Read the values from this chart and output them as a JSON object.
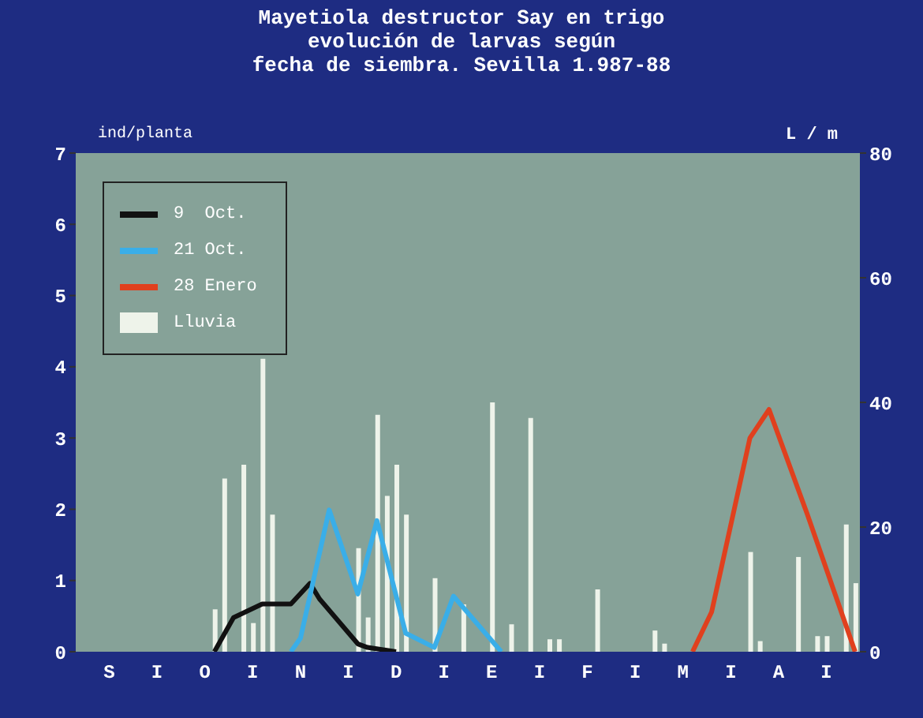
{
  "chart_data": {
    "type": "line",
    "title": "Mayetiola destructor Say en trigo\nevolución de larvas según\nfecha de siembra. Sevilla 1.987-88",
    "ylabel": "ind/planta",
    "y2label": "L / m",
    "categories": [
      null,
      null,
      null,
      "S",
      null,
      null,
      null,
      null,
      "I",
      null,
      null,
      null,
      null,
      "O",
      null,
      null,
      null,
      null,
      "I",
      null,
      null,
      null,
      null,
      "N",
      null,
      null,
      null,
      null,
      "I",
      null,
      null,
      null,
      null,
      "D",
      null,
      null,
      null,
      null,
      "I",
      null,
      null,
      null,
      null,
      "E",
      null,
      null,
      null,
      null,
      "I",
      null,
      null,
      null,
      null,
      "F",
      null,
      null,
      null,
      null,
      "I",
      null,
      null,
      null,
      null,
      "M",
      null,
      null,
      null,
      null,
      "I",
      null,
      null,
      null,
      null,
      "A",
      null,
      null,
      null,
      null,
      "I",
      null,
      null,
      null
    ],
    "ylim": [
      0,
      7
    ],
    "yticks": [
      0,
      1,
      2,
      3,
      4,
      5,
      6,
      7
    ],
    "y2lim": [
      0,
      80
    ],
    "y2ticks": [
      0,
      20,
      40,
      60,
      80
    ],
    "legend": "top left",
    "marker": "none",
    "series": [
      {
        "name": "9  Oct.",
        "color": "#111111",
        "values": [
          null,
          null,
          null,
          null,
          null,
          null,
          null,
          null,
          null,
          null,
          null,
          null,
          null,
          null,
          0,
          null,
          0.48,
          null,
          null,
          0.67,
          null,
          null,
          0.67,
          null,
          0.96,
          0.74,
          null,
          null,
          null,
          0.11,
          0.06,
          null,
          null,
          0,
          null,
          null,
          null,
          null,
          null,
          null,
          null,
          null,
          null,
          null,
          null,
          null,
          null,
          null,
          null,
          null,
          null,
          null,
          null,
          null,
          null,
          null,
          null,
          null,
          null,
          null,
          null,
          null,
          null,
          null,
          null,
          null,
          null,
          null,
          null,
          null,
          null,
          null,
          null,
          null,
          null,
          null,
          null,
          null,
          null,
          null,
          null,
          null
        ]
      },
      {
        "name": "21 Oct.",
        "color": "#3aaee8",
        "values": [
          null,
          null,
          null,
          null,
          null,
          null,
          null,
          null,
          null,
          null,
          null,
          null,
          null,
          null,
          null,
          null,
          null,
          null,
          null,
          null,
          null,
          null,
          0,
          0.19,
          null,
          null,
          1.99,
          null,
          null,
          0.81,
          null,
          1.84,
          null,
          null,
          0.26,
          null,
          null,
          0.06,
          null,
          0.78,
          null,
          null,
          null,
          null,
          0,
          null,
          null,
          null,
          null,
          null,
          null,
          null,
          null,
          null,
          null,
          null,
          null,
          null,
          null,
          null,
          null,
          null,
          null,
          null,
          null,
          null,
          null,
          null,
          null,
          null,
          null,
          null,
          null,
          null,
          null,
          null,
          null,
          null,
          null,
          null,
          null,
          null
        ]
      },
      {
        "name": "28 Enero",
        "color": "#e0401e",
        "values": [
          null,
          null,
          null,
          null,
          null,
          null,
          null,
          null,
          null,
          null,
          null,
          null,
          null,
          null,
          null,
          null,
          null,
          null,
          null,
          null,
          null,
          null,
          null,
          null,
          null,
          null,
          null,
          null,
          null,
          null,
          null,
          null,
          null,
          null,
          null,
          null,
          null,
          null,
          null,
          null,
          null,
          null,
          null,
          null,
          null,
          null,
          null,
          null,
          null,
          null,
          null,
          null,
          null,
          null,
          null,
          null,
          null,
          null,
          null,
          null,
          null,
          null,
          null,
          null,
          0,
          null,
          0.56,
          null,
          null,
          null,
          3.0,
          null,
          3.4,
          null,
          null,
          null,
          1.93,
          null,
          null,
          null,
          null,
          0
        ]
      },
      {
        "name": "Lluvia",
        "type": "bar",
        "axis": "y2",
        "color": "#eef3ea",
        "values": [
          null,
          null,
          null,
          null,
          null,
          null,
          null,
          null,
          null,
          null,
          null,
          null,
          null,
          null,
          6.8,
          27.8,
          null,
          30,
          4.6,
          47,
          22,
          null,
          null,
          null,
          null,
          null,
          null,
          null,
          null,
          16.6,
          5.5,
          38,
          25,
          30,
          22,
          null,
          null,
          11.8,
          null,
          null,
          7.6,
          null,
          null,
          40,
          null,
          4.4,
          null,
          37.5,
          null,
          2,
          2,
          null,
          null,
          null,
          10,
          null,
          null,
          null,
          null,
          null,
          3.4,
          1.3,
          null,
          null,
          null,
          null,
          null,
          null,
          null,
          null,
          16,
          1.7,
          null,
          null,
          null,
          15.2,
          null,
          2.5,
          2.5,
          null,
          20.4,
          11
        ]
      }
    ]
  }
}
